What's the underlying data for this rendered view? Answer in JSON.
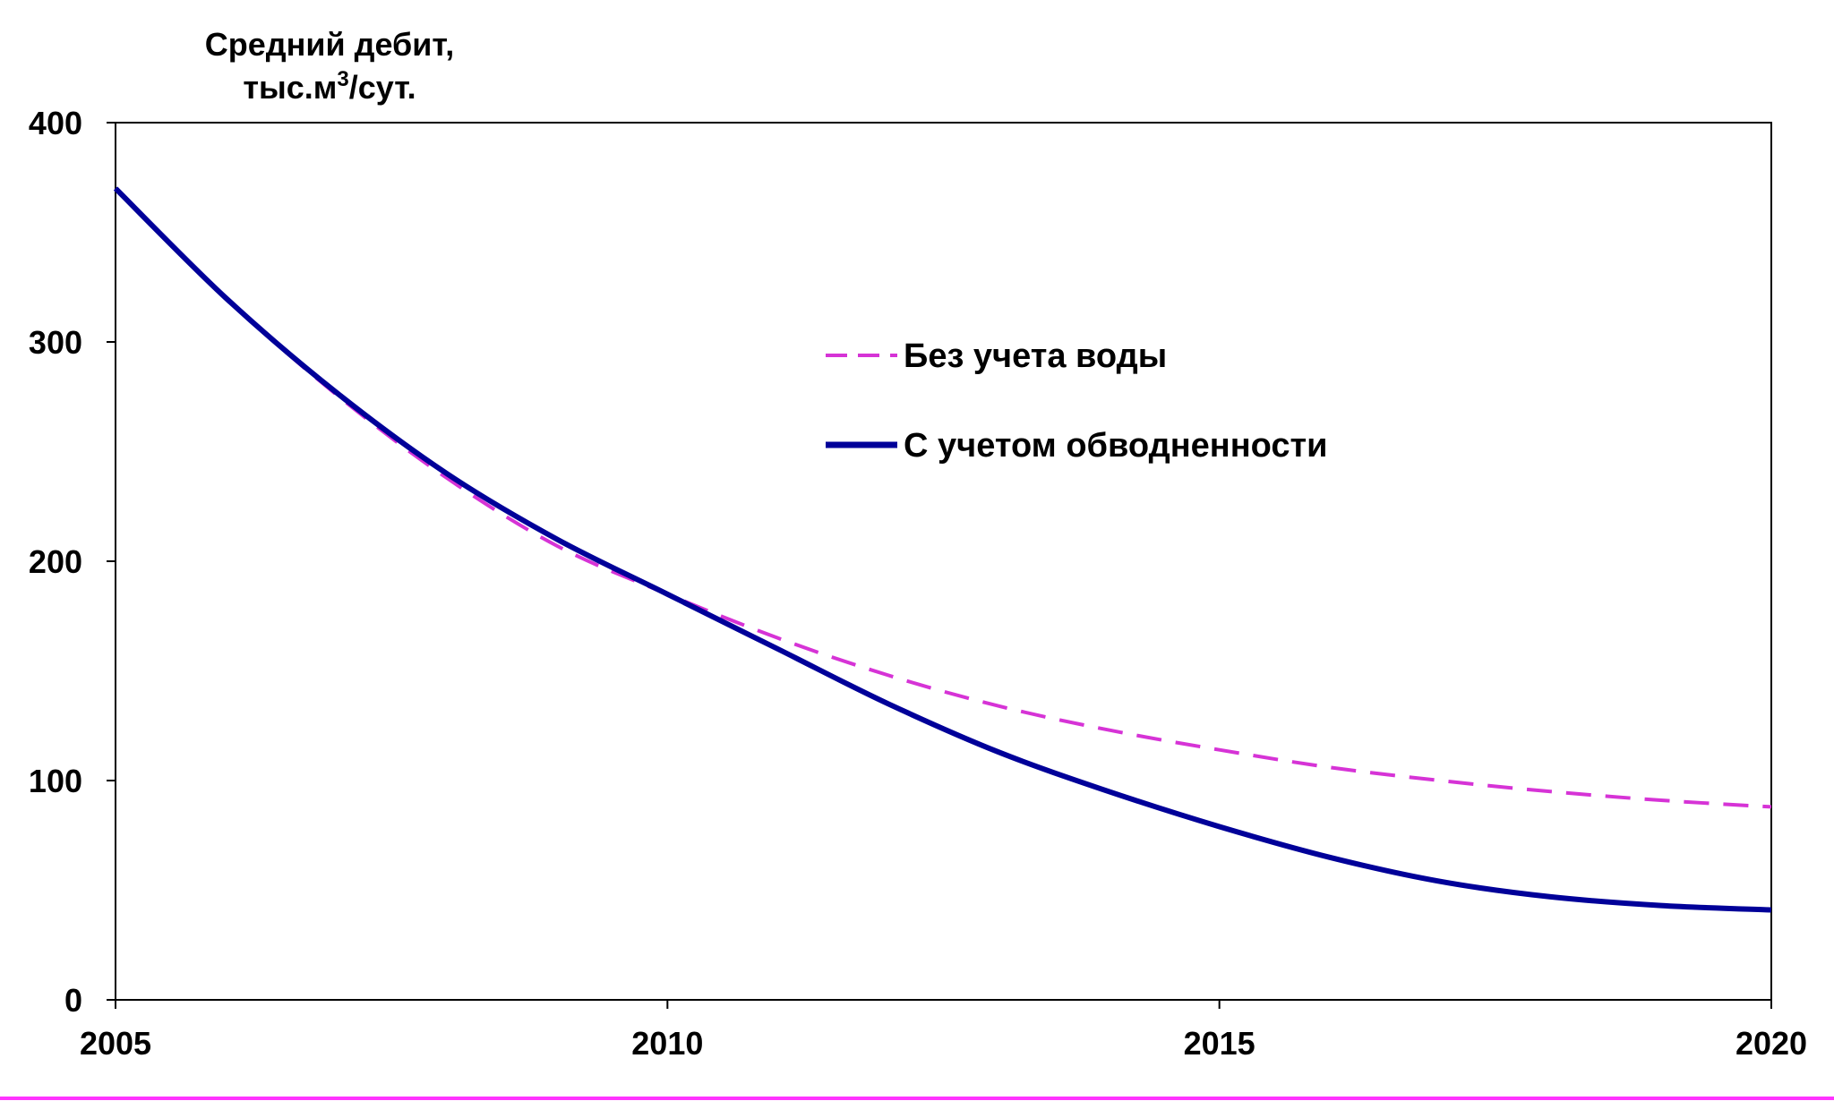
{
  "chart_data": {
    "type": "line",
    "ylabel_line1": "Средний дебит,",
    "ylabel_line2_prefix": "тыс.м",
    "ylabel_line2_sup": "3",
    "ylabel_line2_suffix": "/сут.",
    "xlim": [
      2005,
      2020
    ],
    "ylim": [
      0,
      400
    ],
    "x_ticks": [
      2005,
      2010,
      2015,
      2020
    ],
    "y_ticks": [
      0,
      100,
      200,
      300,
      400
    ],
    "grid": false,
    "legend_position": "upper-middle",
    "series": [
      {
        "name": "Без учета воды",
        "style": "dashed",
        "color": "#d633d6",
        "x": [
          2005,
          2006,
          2007,
          2008,
          2009,
          2010,
          2011,
          2012,
          2013,
          2014,
          2015,
          2016,
          2017,
          2018,
          2019,
          2020
        ],
        "y": [
          370,
          320,
          276,
          238,
          207,
          185,
          165,
          148,
          134,
          123,
          114,
          106,
          100,
          95,
          91,
          88
        ]
      },
      {
        "name": "С учетом обводненности",
        "style": "solid",
        "color": "#000099",
        "x": [
          2005,
          2006,
          2007,
          2008,
          2009,
          2010,
          2011,
          2012,
          2013,
          2014,
          2015,
          2016,
          2017,
          2018,
          2019,
          2020
        ],
        "y": [
          370,
          320,
          277,
          240,
          210,
          185,
          160,
          135,
          113,
          95,
          79,
          65,
          54,
          47,
          43,
          41
        ]
      }
    ]
  },
  "footer_line_color": "#ff33ff"
}
